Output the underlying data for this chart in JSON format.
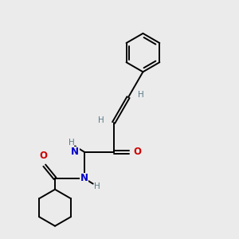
{
  "background_color": "#ebebeb",
  "bond_color": "#000000",
  "N_color": "#0000cc",
  "O_color": "#cc0000",
  "H_color": "#5a7a8a",
  "figsize": [
    3.0,
    3.0
  ],
  "dpi": 100,
  "xlim": [
    0,
    10
  ],
  "ylim": [
    0,
    10
  ]
}
